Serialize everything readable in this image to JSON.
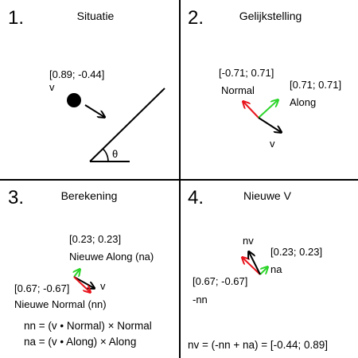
{
  "colors": {
    "black": "#000000",
    "red": "#e8141c",
    "green": "#2dd42b"
  },
  "panels": [
    {
      "number": "1.",
      "title": "Situatie",
      "velocity_value": "[0.89; -0.44]",
      "velocity_name": "v",
      "angle_symbol": "θ"
    },
    {
      "number": "2.",
      "title": "Gelijkstelling",
      "normal_value": "[-0.71; 0.71]",
      "normal_name": "Normal",
      "along_value": "[0.71; 0.71]",
      "along_name": "Along",
      "velocity_name": "v"
    },
    {
      "number": "3.",
      "title": "Berekening",
      "along_value": "[0.23; 0.23]",
      "along_name": "Nieuwe Along (na)",
      "velocity_name": "v",
      "normal_value": "[0.67; -0.67]",
      "normal_name": "Nieuwe Normal (nn)",
      "formula_nn": "nn = (v • Normal) × Normal",
      "formula_na": "na = (v • Along) × Along"
    },
    {
      "number": "4.",
      "title": "Nieuwe V",
      "nv_name": "nv",
      "na_value": "[0.23; 0.23]",
      "na_name": "na",
      "nn_value": "[0.67; -0.67]",
      "nn_name": "-nn",
      "formula": "nv = (-nn + na) = [-0.44; 0.89]"
    }
  ]
}
